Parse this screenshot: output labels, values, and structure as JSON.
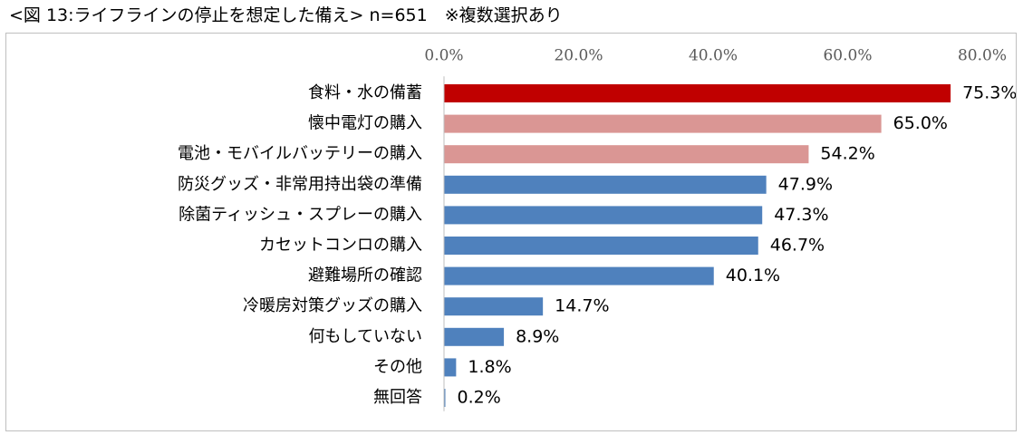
{
  "figure": {
    "title": "<図 13:ライフラインの停止を想定した備え> n=651　※複数選択あり"
  },
  "chart_data": {
    "type": "bar",
    "orientation": "horizontal",
    "title": "<図 13:ライフラインの停止を想定した備え> n=651　※複数選択あり",
    "sample_size": 651,
    "note": "※複数選択あり",
    "xlim": [
      0,
      80
    ],
    "xticks": [
      0,
      20,
      40,
      60,
      80
    ],
    "tick_format": "0.0%",
    "grid": false,
    "legend": "none",
    "categories": [
      "食料・水の備蓄",
      "懐中電灯の購入",
      "電池・モバイルバッテリーの購入",
      "防災グッズ・非常用持出袋の準備",
      "除菌ティッシュ・スプレーの購入",
      "カセットコンロの購入",
      "避難場所の確認",
      "冷暖房対策グッズの購入",
      "何もしていない",
      "その他",
      "無回答"
    ],
    "values": [
      75.3,
      65.0,
      54.2,
      47.9,
      47.3,
      46.7,
      40.1,
      14.7,
      8.9,
      1.8,
      0.2
    ],
    "value_labels": [
      "75.3%",
      "65.0%",
      "54.2%",
      "47.9%",
      "47.3%",
      "46.7%",
      "40.1%",
      "14.7%",
      "8.9%",
      "1.8%",
      "0.2%"
    ],
    "bar_colors": [
      "#c00000",
      "#da9694",
      "#da9694",
      "#4f81bd",
      "#4f81bd",
      "#4f81bd",
      "#4f81bd",
      "#4f81bd",
      "#4f81bd",
      "#4f81bd",
      "#4f81bd"
    ],
    "axis_color": "#bfbfbf"
  }
}
